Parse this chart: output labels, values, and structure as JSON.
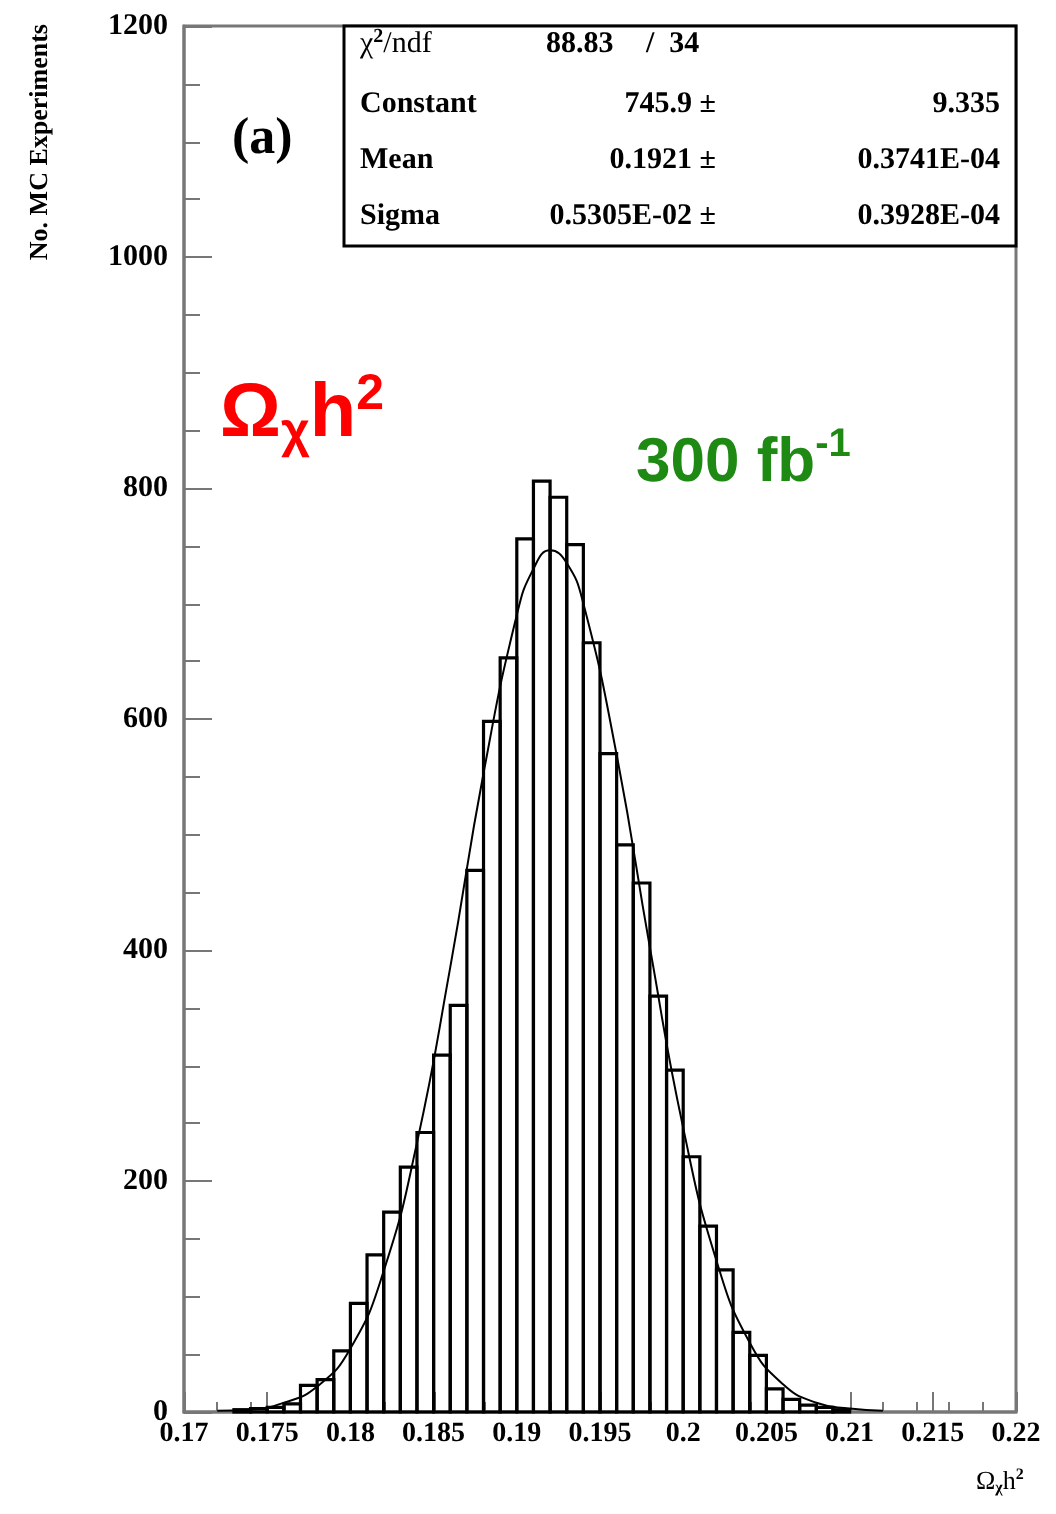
{
  "chart_data": {
    "type": "histogram",
    "xlabel": "Ω$_{χ}$h$^{2}$",
    "ylabel": "No. MC Experiments",
    "bins": [
      0.173,
      0.174,
      0.175,
      0.176,
      0.177,
      0.178,
      0.179,
      0.18,
      0.181,
      0.182,
      0.183,
      0.184,
      0.185,
      0.186,
      0.187,
      0.188,
      0.189,
      0.19,
      0.191,
      0.192,
      0.193,
      0.194,
      0.195,
      0.196,
      0.197,
      0.198,
      0.199,
      0.2,
      0.201,
      0.202,
      0.203,
      0.204,
      0.205,
      0.206,
      0.207,
      0.208,
      0.209,
      0.21
    ],
    "values": [
      2,
      3,
      4,
      7,
      23,
      28,
      53,
      94,
      136,
      173,
      212,
      242,
      309,
      352,
      469,
      598,
      653,
      756,
      806,
      792,
      751,
      666,
      570,
      491,
      458,
      360,
      296,
      221,
      161,
      123,
      69,
      49,
      20,
      11,
      6,
      4,
      2
    ],
    "color": "#000000",
    "series": [
      {
        "type": "line",
        "color": "#000000",
        "x": [
          0.172,
          0.174,
          0.176,
          0.178,
          0.18,
          0.182,
          0.184,
          0.186,
          0.188,
          0.19,
          0.191,
          0.192,
          0.193,
          0.194,
          0.196,
          0.198,
          0.2,
          0.202,
          0.204,
          0.206,
          0.208,
          0.21,
          0.212
        ],
        "values": [
          1,
          2,
          8,
          22,
          55,
          122,
          233,
          385,
          553,
          690,
          730,
          746,
          735,
          700,
          569,
          402,
          246,
          131,
          60,
          24,
          8,
          3,
          1
        ]
      }
    ],
    "xlim": [
      0.17,
      0.22
    ],
    "xticks": [
      0.17,
      0.175,
      0.18,
      0.185,
      0.19,
      0.195,
      0.2,
      0.205,
      0.21,
      0.215,
      0.22
    ],
    "ylim": [
      0,
      1200
    ],
    "yticks": [
      0,
      200,
      400,
      600,
      800,
      1000,
      1200
    ],
    "grid": false,
    "annotations": [
      "(a)",
      "χ$^{2}$/ndf",
      "88.83",
      "/  34",
      "Constant",
      "745.9 ±",
      "9.335",
      "Mean",
      "0.1921 ±",
      "0.3741E-04",
      "Sigma",
      "0.5305E-02 ±",
      "0.3928E-04",
      "Ω$_{χ}$h$^{2}$",
      "300 fb$^{-1}$"
    ]
  }
}
